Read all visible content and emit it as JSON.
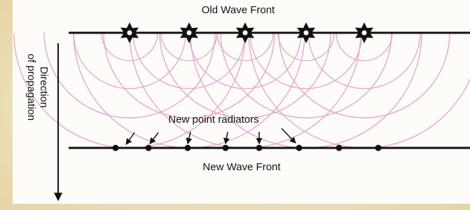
{
  "header": {
    "title": "Old Wave Front"
  },
  "direction": {
    "lines": [
      "Direction",
      "of propagation"
    ]
  },
  "radiators": {
    "label": "New point radiators"
  },
  "footer": {
    "label": "New Wave Front"
  }
}
